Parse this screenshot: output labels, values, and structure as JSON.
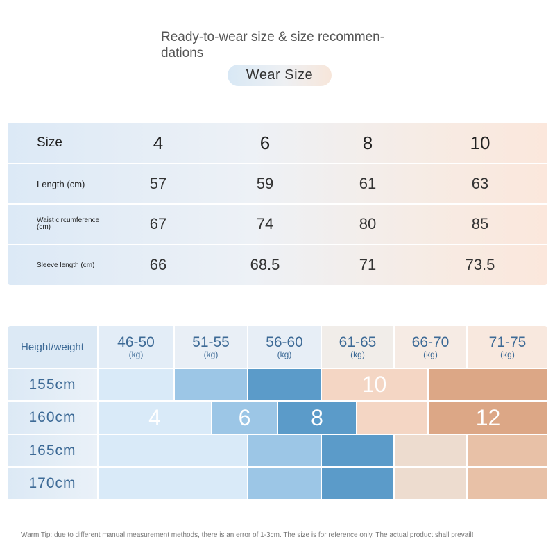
{
  "header": {
    "title": "Ready-to-wear size & size recommen-\ndations",
    "pill_label": "Wear  Size"
  },
  "size_table": {
    "header_label": "Size",
    "sizes": [
      "4",
      "6",
      "8",
      "10"
    ],
    "rows": [
      {
        "label": "Length (cm)",
        "values": [
          "57",
          "59",
          "61",
          "63"
        ]
      },
      {
        "label": "Waist circumference\n(cm)",
        "values": [
          "67",
          "74",
          "80",
          "85"
        ]
      },
      {
        "label": "Sleeve length (cm)",
        "values": [
          "66",
          "68.5",
          "71",
          "73.5"
        ]
      }
    ]
  },
  "height_weight": {
    "corner_label": "Height/weight",
    "weight_ranges": [
      "46-50",
      "51-55",
      "56-60",
      "61-65",
      "66-70",
      "71-75"
    ],
    "weight_unit": "(kg)",
    "heights": [
      "155cm",
      "160cm",
      "165cm",
      "170cm"
    ],
    "size_labels": {
      "s4": "4",
      "s6": "6",
      "s8": "8",
      "s10": "10",
      "s12": "12"
    }
  },
  "footer": {
    "tip": "Warm Tip: due to different manual measurement methods, there is an error of 1-3cm. The size is for reference only. The actual product shall prevail!"
  },
  "colors": {
    "header_text": "#3d6a96",
    "light_blue": "#d9eaf8",
    "mid_blue": "#9cc6e6",
    "dark_blue": "#5b9bc9",
    "light_peach": "#f4d6c4",
    "mid_peach": "#e8c1a7",
    "dark_peach": "#dca786"
  }
}
